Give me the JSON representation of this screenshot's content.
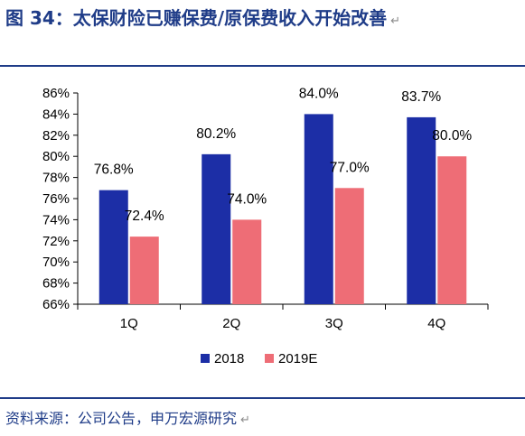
{
  "header": {
    "title": "图 34：太保财险已赚保费/原保费收入开始改善",
    "para_mark": "↵"
  },
  "footer": {
    "source": "资料来源：公司公告，申万宏源研究",
    "para_mark": "↵"
  },
  "colors": {
    "title": "#1f3c88",
    "rule": "#1f3c88",
    "series_2018": "#1c2ea6",
    "series_2019E": "#ee6d76",
    "axis": "#000000"
  },
  "chart_data": {
    "type": "bar",
    "title": "",
    "xlabel": "",
    "ylabel": "",
    "categories": [
      "1Q",
      "2Q",
      "3Q",
      "4Q"
    ],
    "series": [
      {
        "name": "2018",
        "values": [
          76.8,
          80.2,
          84.0,
          83.7
        ],
        "labels": [
          "76.8%",
          "80.2%",
          "84.0%",
          "83.7%"
        ]
      },
      {
        "name": "2019E",
        "values": [
          72.4,
          74.0,
          77.0,
          80.0
        ],
        "labels": [
          "72.4%",
          "74.0%",
          "77.0%",
          "80.0%"
        ]
      }
    ],
    "ylim": [
      66,
      86
    ],
    "yticks": [
      66,
      68,
      70,
      72,
      74,
      76,
      78,
      80,
      82,
      84,
      86
    ],
    "ytick_labels": [
      "66%",
      "68%",
      "70%",
      "72%",
      "74%",
      "76%",
      "78%",
      "80%",
      "82%",
      "84%",
      "86%"
    ],
    "grid": false,
    "legend_position": "bottom"
  }
}
